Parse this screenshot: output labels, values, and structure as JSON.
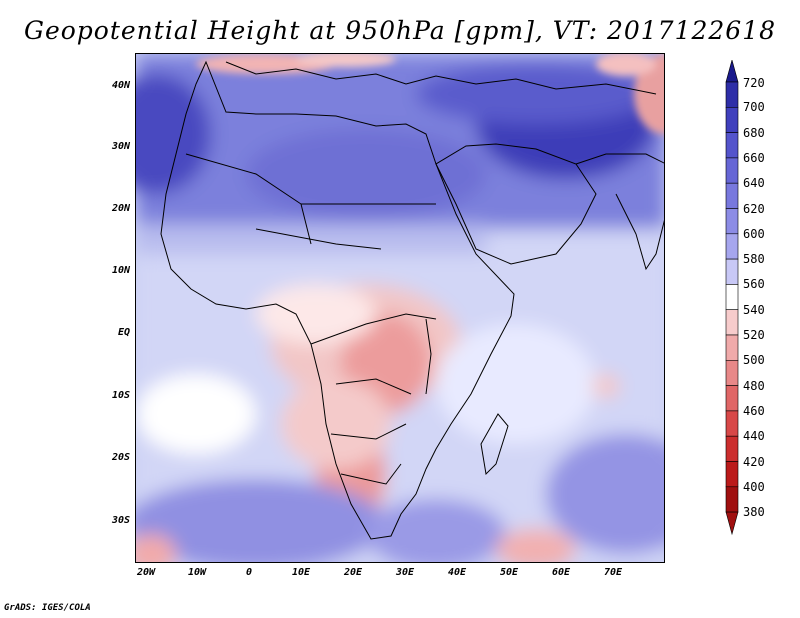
{
  "title": "Geopotential Height at 950hPa [gpm], VT: 2017122618",
  "credit": "GrADS: IGES/COLA",
  "chart_data": {
    "type": "heatmap",
    "variable": "Geopotential Height",
    "level": "950hPa",
    "units": "gpm",
    "valid_time": "2017122618",
    "lon_range": [
      -22,
      80
    ],
    "lat_range": [
      -37,
      45
    ],
    "lat_ticks": [
      "40N",
      "30N",
      "20N",
      "10N",
      "EQ",
      "10S",
      "20S",
      "30S"
    ],
    "lat_values": [
      40,
      30,
      20,
      10,
      0,
      -10,
      -20,
      -30
    ],
    "lon_ticks": [
      "20W",
      "10W",
      "0",
      "10E",
      "20E",
      "30E",
      "40E",
      "50E",
      "60E",
      "70E"
    ],
    "lon_values": [
      -20,
      -10,
      0,
      10,
      20,
      30,
      40,
      50,
      60,
      70
    ],
    "colorbar": {
      "levels": [
        "720",
        "700",
        "680",
        "660",
        "640",
        "620",
        "600",
        "580",
        "560",
        "540",
        "520",
        "500",
        "480",
        "460",
        "440",
        "420",
        "400",
        "380"
      ],
      "colors": [
        "#1a1a8c",
        "#2e2ea8",
        "#4040bd",
        "#5454cc",
        "#6666d6",
        "#7878de",
        "#8c8ce6",
        "#a6a6ee",
        "#c8c8f6",
        "#ffffff",
        "#f7cccc",
        "#f0aaaa",
        "#e88888",
        "#e06666",
        "#d84848",
        "#cc2e2e",
        "#bb1a1a",
        "#a01010"
      ]
    }
  }
}
